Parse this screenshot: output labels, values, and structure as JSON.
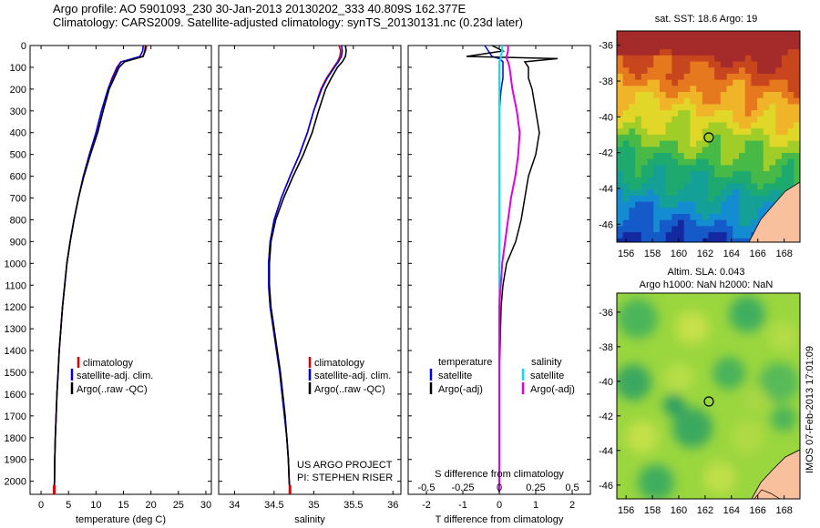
{
  "header": {
    "title_line1": "Argo profile: AO 5901093_230 30-Jan-2013 20130202_333 40.809S 162.377E",
    "title_line2": "Climatology: CARS2009. Satellite-adjusted climatology: synTS_20130131.nc (0.23d later)"
  },
  "colors": {
    "climatology": "#e00000",
    "satellite": "#0000e6",
    "argo": "#000000",
    "sal_satellite": "#00e5ee",
    "sal_argo": "#e000e0"
  },
  "depth_axis": {
    "ticks": [
      "0",
      "100",
      "200",
      "300",
      "400",
      "500",
      "600",
      "700",
      "800",
      "900",
      "1000",
      "1100",
      "1200",
      "1300",
      "1400",
      "1500",
      "1600",
      "1700",
      "1800",
      "1900",
      "2000"
    ],
    "range": [
      0,
      2060
    ]
  },
  "panels": {
    "temperature": {
      "xlabel": "temperature (deg C)",
      "xticks": [
        "0",
        "5",
        "10",
        "15",
        "20",
        "25",
        "30"
      ],
      "xrange": [
        -2,
        31
      ],
      "legend": [
        "climatology",
        "satellite-adj. clim.",
        "Argo(..raw -QC)"
      ]
    },
    "salinity": {
      "xlabel": "salinity",
      "xticks": [
        "34",
        "34.5",
        "35",
        "35.5",
        "36"
      ],
      "xrange": [
        33.8,
        36.1
      ],
      "legend": [
        "climatology",
        "satellite-adj. clim.",
        "Argo(..raw -QC)"
      ],
      "note_line1": "US ARGO PROJECT",
      "note_line2": "PI: STEPHEN RISER"
    },
    "difference": {
      "xlabel": "T difference from climatology",
      "top_label": "S difference from climatology",
      "xticks_top": [
        "-0.5",
        "-0.25",
        "0",
        "0.25",
        "0.5"
      ],
      "xticks_bottom": [
        "-2",
        "-1",
        "0",
        "1",
        "2"
      ],
      "xrange": [
        -2.5,
        2.5
      ],
      "legend_head_t": "temperature",
      "legend_head_s": "salinity",
      "legend_t": [
        "satellite",
        "Argo(-adj)"
      ],
      "legend_s": [
        "satellite",
        "Argo(-adj)"
      ]
    }
  },
  "maps": {
    "sst": {
      "title": "sat. SST: 18.6 Argo: 19",
      "yticks": [
        "-36",
        "-38",
        "-40",
        "-42",
        "-44",
        "-46"
      ],
      "xticks": [
        "156",
        "158",
        "160",
        "162",
        "164",
        "166",
        "168"
      ]
    },
    "sla": {
      "title_line1": "Altim. SLA: 0.043",
      "title_line2": "Argo h1000: NaN h2000: NaN",
      "yticks": [
        "-36",
        "-38",
        "-40",
        "-42",
        "-44",
        "-46"
      ],
      "xticks": [
        "156",
        "158",
        "160",
        "162",
        "164",
        "166",
        "168"
      ]
    },
    "float_position": {
      "lon": 162.377,
      "lat": -40.809
    }
  },
  "footer_stamp": "IMOS 07-Feb-2013 17:01:09",
  "chart_data": [
    {
      "type": "line",
      "name": "temperature-profile",
      "xlabel": "temperature (deg C)",
      "ylabel": "",
      "xlim": [
        -2,
        31
      ],
      "ylim": [
        2060,
        0
      ],
      "depths": [
        0,
        25,
        50,
        75,
        100,
        150,
        200,
        300,
        400,
        500,
        600,
        700,
        800,
        900,
        1000,
        1100,
        1200,
        1300,
        1400,
        1500,
        1600,
        1700,
        1800,
        1900,
        2000,
        2050
      ],
      "series": [
        {
          "name": "climatology",
          "values": [
            19.2,
            19.0,
            18.5,
            14.5,
            13.8,
            12.9,
            12.2,
            11.0,
            10.0,
            8.8,
            7.7,
            6.8,
            6.0,
            5.3,
            4.7,
            4.3,
            3.9,
            3.6,
            3.3,
            3.1,
            2.9,
            2.75,
            2.6,
            2.5,
            2.45,
            2.4
          ]
        },
        {
          "name": "satellite-adj. clim.",
          "values": [
            18.6,
            18.5,
            18.0,
            14.6,
            13.9,
            13.0,
            12.2,
            11.0,
            10.0,
            8.8,
            7.7,
            6.8,
            6.0,
            5.3,
            4.7,
            4.3,
            3.9,
            3.6,
            3.3,
            3.1,
            2.9,
            2.75,
            2.6,
            2.5,
            2.45,
            2.4
          ]
        },
        {
          "name": "Argo(..raw -QC)",
          "values": [
            19.0,
            18.9,
            18.6,
            15.2,
            14.2,
            13.3,
            12.4,
            11.3,
            10.3,
            9.0,
            7.8,
            6.8,
            6.0,
            5.3,
            4.7,
            4.3,
            3.9,
            3.6,
            3.3,
            3.1,
            2.9,
            2.75,
            2.6,
            2.5,
            2.45,
            2.4
          ]
        }
      ]
    },
    {
      "type": "line",
      "name": "salinity-profile",
      "xlabel": "salinity",
      "ylabel": "",
      "xlim": [
        33.8,
        36.1
      ],
      "ylim": [
        2060,
        0
      ],
      "depths": [
        0,
        25,
        50,
        75,
        100,
        150,
        200,
        300,
        400,
        500,
        600,
        700,
        800,
        900,
        1000,
        1100,
        1200,
        1300,
        1400,
        1500,
        1600,
        1700,
        1800,
        1900,
        2000,
        2050
      ],
      "series": [
        {
          "name": "climatology",
          "values": [
            35.32,
            35.34,
            35.33,
            35.3,
            35.25,
            35.16,
            35.09,
            35.0,
            34.92,
            34.82,
            34.7,
            34.59,
            34.5,
            34.45,
            34.43,
            34.43,
            34.45,
            34.49,
            34.53,
            34.57,
            34.6,
            34.63,
            34.66,
            34.68,
            34.69,
            34.7
          ]
        },
        {
          "name": "satellite-adj. clim.",
          "values": [
            35.35,
            35.36,
            35.35,
            35.31,
            35.26,
            35.17,
            35.1,
            35.0,
            34.92,
            34.82,
            34.7,
            34.59,
            34.5,
            34.45,
            34.43,
            34.43,
            34.45,
            34.49,
            34.53,
            34.57,
            34.6,
            34.63,
            34.66,
            34.68,
            34.69,
            34.7
          ]
        },
        {
          "name": "Argo(..raw -QC)",
          "values": [
            35.4,
            35.41,
            35.4,
            35.36,
            35.3,
            35.22,
            35.15,
            35.06,
            34.98,
            34.87,
            34.74,
            34.62,
            34.52,
            34.46,
            34.44,
            34.44,
            34.46,
            34.5,
            34.54,
            34.58,
            34.61,
            34.64,
            34.66,
            34.68,
            34.69,
            34.7
          ]
        }
      ]
    },
    {
      "type": "line",
      "name": "difference-profile",
      "xlabel": "T difference from climatology",
      "ylabel": "",
      "xlim": [
        -2.5,
        2.5
      ],
      "ylim": [
        2060,
        0
      ],
      "depths": [
        0,
        25,
        50,
        60,
        75,
        100,
        150,
        200,
        300,
        400,
        500,
        600,
        700,
        800,
        900,
        1000,
        1100,
        1200,
        1500,
        1800,
        2050
      ],
      "series": [
        {
          "name": "temperature satellite",
          "values": [
            -0.4,
            -0.3,
            -0.2,
            0.0,
            0.1,
            0.1,
            0.1,
            0.05,
            0.0,
            0.0,
            0.0,
            0.0,
            0.0,
            0.0,
            0.0,
            0.0,
            0.0,
            0.0,
            0.0,
            0.0,
            0.0
          ]
        },
        {
          "name": "temperature Argo(-adj)",
          "values": [
            -0.2,
            0.1,
            -0.9,
            1.6,
            0.7,
            0.8,
            0.8,
            0.9,
            1.0,
            1.1,
            1.0,
            0.8,
            0.7,
            0.6,
            0.45,
            0.2,
            0.1,
            0.05,
            0.0,
            0.0,
            0.0
          ]
        },
        {
          "name": "salinity satellite",
          "values": [
            0.02,
            0.02,
            0.01,
            0.01,
            0.0,
            0.0,
            0.0,
            0.0,
            0.0,
            0.0,
            0.0,
            0.0,
            0.0,
            0.0,
            0.0,
            0.0,
            0.0,
            0.0,
            0.0,
            0.0,
            0.0
          ]
        },
        {
          "name": "salinity Argo(-adj)",
          "values": [
            0.06,
            0.06,
            0.05,
            0.05,
            0.06,
            0.07,
            0.08,
            0.09,
            0.12,
            0.14,
            0.13,
            0.11,
            0.08,
            0.06,
            0.04,
            0.02,
            0.01,
            0.0,
            0.0,
            0.0,
            0.0
          ]
        }
      ]
    }
  ]
}
